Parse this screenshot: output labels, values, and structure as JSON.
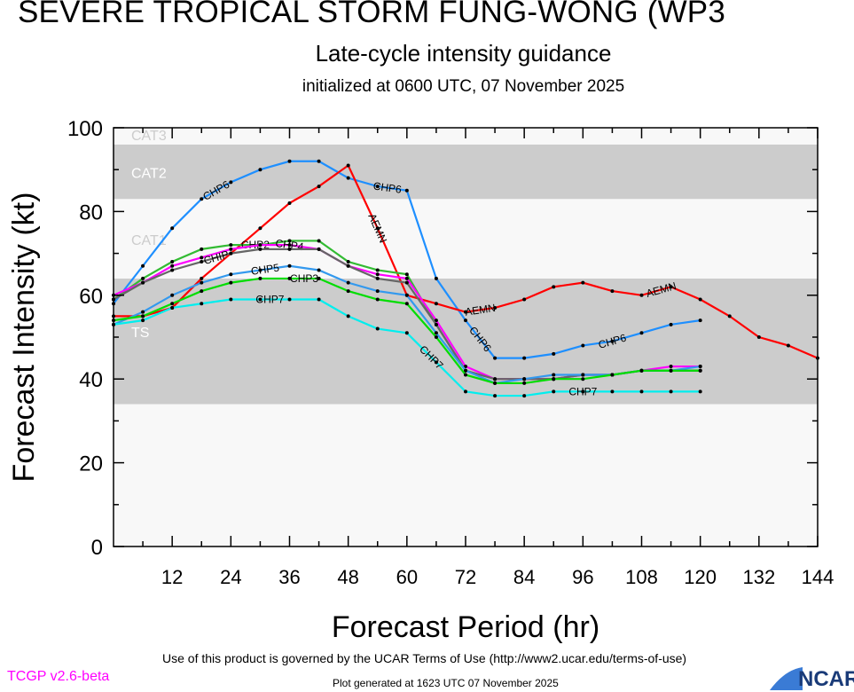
{
  "header": {
    "title": "SEVERE TROPICAL STORM FUNG-WONG (WP3",
    "subtitle": "Late-cycle intensity guidance",
    "initialized": "initialized at 0600 UTC, 07 November 2025"
  },
  "footer": {
    "terms": "Use of this product is governed by the UCAR Terms of Use (http://www2.ucar.edu/terms-of-use)",
    "generated": "Plot generated at 1623 UTC   07 November 2025",
    "version": "TCGP v2.6-beta",
    "logo": "NCAR"
  },
  "chart_data": {
    "type": "line",
    "xlabel": "Forecast Period (hr)",
    "ylabel": "Forecast Intensity (kt)",
    "xlim": [
      0,
      144
    ],
    "ylim": [
      0,
      100
    ],
    "xticks": [
      12,
      24,
      36,
      48,
      60,
      72,
      84,
      96,
      108,
      120,
      132,
      144
    ],
    "yticks": [
      0,
      20,
      40,
      60,
      80,
      100
    ],
    "bands": [
      {
        "name": "TS",
        "range": [
          34,
          64
        ],
        "color": "#cccccc"
      },
      {
        "name": "CAT1",
        "range": [
          64,
          83
        ],
        "color": "#f8f8f8"
      },
      {
        "name": "CAT2",
        "range": [
          83,
          96
        ],
        "color": "#cccccc"
      },
      {
        "name": "CAT3",
        "range": [
          96,
          100
        ],
        "color": "#f8f8f8"
      }
    ],
    "series": [
      {
        "name": "CHP6",
        "color": "#1e8fff",
        "labels_at": [
          21,
          56,
          75,
          102
        ],
        "x": [
          0,
          6,
          12,
          18,
          24,
          30,
          36,
          42,
          48,
          54,
          60,
          66,
          72,
          78,
          84,
          90,
          96,
          102,
          108,
          114,
          120
        ],
        "values": [
          58,
          67,
          76,
          83,
          87,
          90,
          92,
          92,
          88,
          86,
          85,
          64,
          54,
          45,
          45,
          46,
          48,
          49,
          51,
          53,
          54
        ]
      },
      {
        "name": "AEMN",
        "color": "#ff0000",
        "labels_at": [
          54,
          75,
          112
        ],
        "x": [
          0,
          6,
          12,
          18,
          24,
          30,
          36,
          42,
          48,
          54,
          60,
          66,
          72,
          78,
          84,
          90,
          96,
          102,
          108,
          114,
          120,
          126,
          132,
          138,
          144
        ],
        "values": [
          55,
          55,
          57,
          64,
          70,
          76,
          82,
          86,
          91,
          76,
          60,
          58,
          56,
          57,
          59,
          62,
          63,
          61,
          60,
          62,
          59,
          55,
          50,
          48,
          45
        ]
      },
      {
        "name": "CHP2",
        "color": "#33bb33",
        "labels_at": [
          29
        ],
        "x": [
          0,
          6,
          12,
          18,
          24,
          30,
          36,
          42,
          48,
          54,
          60,
          66,
          72,
          78,
          84,
          90,
          96,
          102,
          108,
          114,
          120
        ],
        "values": [
          59,
          64,
          68,
          71,
          72,
          72,
          73,
          73,
          68,
          66,
          65,
          53,
          42,
          40,
          40,
          40,
          41,
          41,
          42,
          42,
          42
        ]
      },
      {
        "name": "CHP4",
        "color": "#ff00ff",
        "labels_at": [
          30
        ],
        "x": [
          0,
          6,
          12,
          18,
          24,
          30,
          36,
          42,
          48,
          54,
          60,
          66,
          72,
          78,
          84,
          90,
          96,
          102,
          108,
          114,
          120
        ],
        "values": [
          60,
          63,
          67,
          69,
          71,
          72,
          72,
          71,
          67,
          65,
          64,
          54,
          43,
          40,
          40,
          40,
          41,
          41,
          42,
          43,
          43
        ]
      },
      {
        "name": "CHIP",
        "color": "#666666",
        "labels_at": [
          29
        ],
        "x": [
          0,
          6,
          12,
          18,
          24,
          30,
          36,
          42,
          48,
          54,
          60,
          66,
          72,
          78,
          84,
          90,
          96,
          102,
          108,
          114,
          120
        ],
        "values": [
          59,
          63,
          66,
          68,
          70,
          71,
          71,
          71,
          67,
          64,
          63,
          53,
          42,
          40,
          40,
          40,
          41,
          41,
          42,
          42,
          42
        ]
      },
      {
        "name": "CHP5",
        "color": "#3399ee",
        "labels_at": [
          31
        ],
        "x": [
          0,
          6,
          12,
          18,
          24,
          30,
          36,
          42,
          48,
          54,
          60,
          66,
          72,
          78,
          84,
          90,
          96,
          102,
          108,
          114,
          120
        ],
        "values": [
          53,
          56,
          60,
          63,
          65,
          66,
          67,
          66,
          63,
          61,
          60,
          51,
          42,
          39,
          40,
          41,
          41,
          41,
          42,
          42,
          43
        ]
      },
      {
        "name": "CHP3",
        "color": "#00dd00",
        "labels_at": [
          31
        ],
        "x": [
          0,
          6,
          12,
          18,
          24,
          30,
          36,
          42,
          48,
          54,
          60,
          66,
          72,
          78,
          84,
          90,
          96,
          102,
          108,
          114,
          120
        ],
        "values": [
          54,
          55,
          58,
          61,
          63,
          64,
          64,
          64,
          61,
          59,
          58,
          50,
          41,
          39,
          39,
          40,
          40,
          41,
          42,
          42,
          42
        ]
      },
      {
        "name": "CHP7",
        "color": "#00eeee",
        "labels_at": [
          32,
          65,
          96
        ],
        "x": [
          0,
          6,
          12,
          18,
          24,
          30,
          36,
          42,
          48,
          54,
          60,
          66,
          72,
          78,
          84,
          90,
          96,
          102,
          108,
          114,
          120
        ],
        "values": [
          53,
          54,
          57,
          58,
          59,
          59,
          59,
          59,
          55,
          52,
          51,
          44,
          37,
          36,
          36,
          37,
          37,
          37,
          37,
          37,
          37
        ]
      }
    ]
  }
}
